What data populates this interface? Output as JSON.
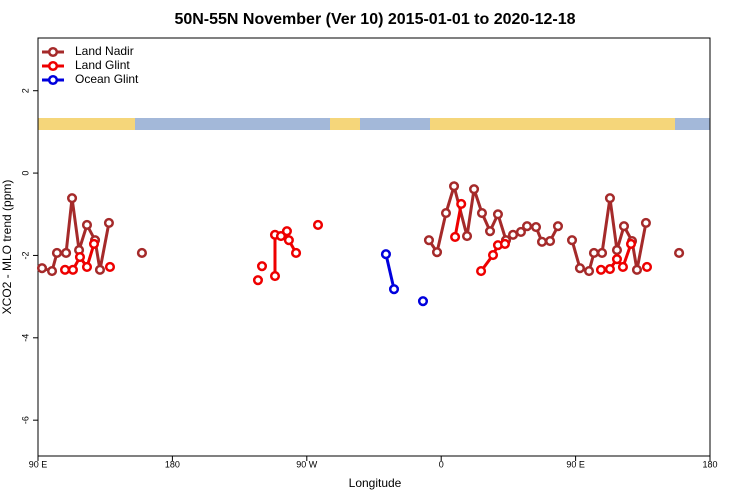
{
  "chart_data": {
    "type": "line",
    "title": "50N-55N November (Ver 10)   2015-01-01 to 2020-12-18",
    "x_label": "Longitude",
    "y_label": "XCO2 - MLO trend (ppm)",
    "xlim": [
      90,
      540
    ],
    "ylim": [
      -6.87,
      3.28
    ],
    "xticks": [
      {
        "value": 90,
        "label": "90 E"
      },
      180,
      {
        "value": 270,
        "label": "90 W"
      },
      {
        "value": 360,
        "label": "0"
      },
      {
        "value": 450,
        "label": "90 E"
      },
      {
        "value": 540,
        "label": "180"
      }
    ],
    "yticks": [
      -6,
      -4,
      -2,
      0,
      2
    ],
    "legend": "top-left",
    "series": [
      {
        "name": "Land Nadir",
        "color": "#a52a2a",
        "x": [
          92.7,
          99.4,
          102.7,
          108.8,
          112.8,
          117.5,
          122.8,
          128.2,
          131.5,
          137.5,
          null,
          159.6,
          null,
          351.8,
          357.2,
          363.2,
          368.6,
          377.3,
          382.0,
          387.3,
          392.7,
          398.0,
          403.4,
          408.1,
          413.4,
          417.5,
          423.5,
          427.5,
          432.9,
          438.2,
          null,
          447.6,
          452.9,
          459.0,
          462.3,
          467.7,
          473.0,
          477.7,
          482.4,
          487.8,
          491.1,
          497.1,
          null,
          519.3
        ],
        "values": [
          -2.31,
          -2.38,
          -1.94,
          -1.94,
          -0.61,
          -1.87,
          -1.26,
          -1.63,
          -2.35,
          -1.21,
          null,
          -1.94,
          null,
          -1.63,
          -1.92,
          -0.97,
          -0.32,
          -1.53,
          -0.39,
          -0.97,
          -1.41,
          -1.0,
          -1.63,
          -1.5,
          -1.43,
          -1.29,
          -1.31,
          -1.67,
          -1.65,
          -1.29,
          null,
          -1.63,
          -2.31,
          -2.38,
          -1.94,
          -1.94,
          -0.61,
          -1.87,
          -1.29,
          -1.65,
          -2.35,
          -1.21,
          null,
          -1.94
        ]
      },
      {
        "name": "Land Glint",
        "color": "#ee0000",
        "x": [
          108.1,
          113.4,
          118.1,
          122.8,
          127.5,
          null,
          138.2,
          null,
          237.3,
          null,
          240.0,
          null,
          248.7,
          248.7,
          252.7,
          256.7,
          258.0,
          262.8,
          null,
          277.5,
          null,
          369.3,
          373.4,
          null,
          386.7,
          394.7,
          398.0,
          402.7,
          null,
          467.0,
          473.0,
          477.7,
          481.7,
          487.1,
          null,
          497.8
        ],
        "values": [
          -2.35,
          -2.35,
          -2.04,
          -2.28,
          -1.72,
          null,
          -2.28,
          null,
          -2.6,
          null,
          -2.26,
          null,
          -2.5,
          -1.5,
          -1.53,
          -1.41,
          -1.63,
          -1.94,
          null,
          -1.26,
          null,
          -1.55,
          -0.75,
          null,
          -2.38,
          -1.99,
          -1.75,
          -1.72,
          null,
          -2.35,
          -2.33,
          -2.09,
          -2.28,
          -1.72,
          null,
          -2.28
        ]
      },
      {
        "name": "Ocean Glint",
        "color": "#0000dd",
        "x": [
          323.0,
          328.4,
          null,
          347.8
        ],
        "values": [
          -1.97,
          -2.82,
          null,
          -3.11
        ]
      }
    ]
  }
}
